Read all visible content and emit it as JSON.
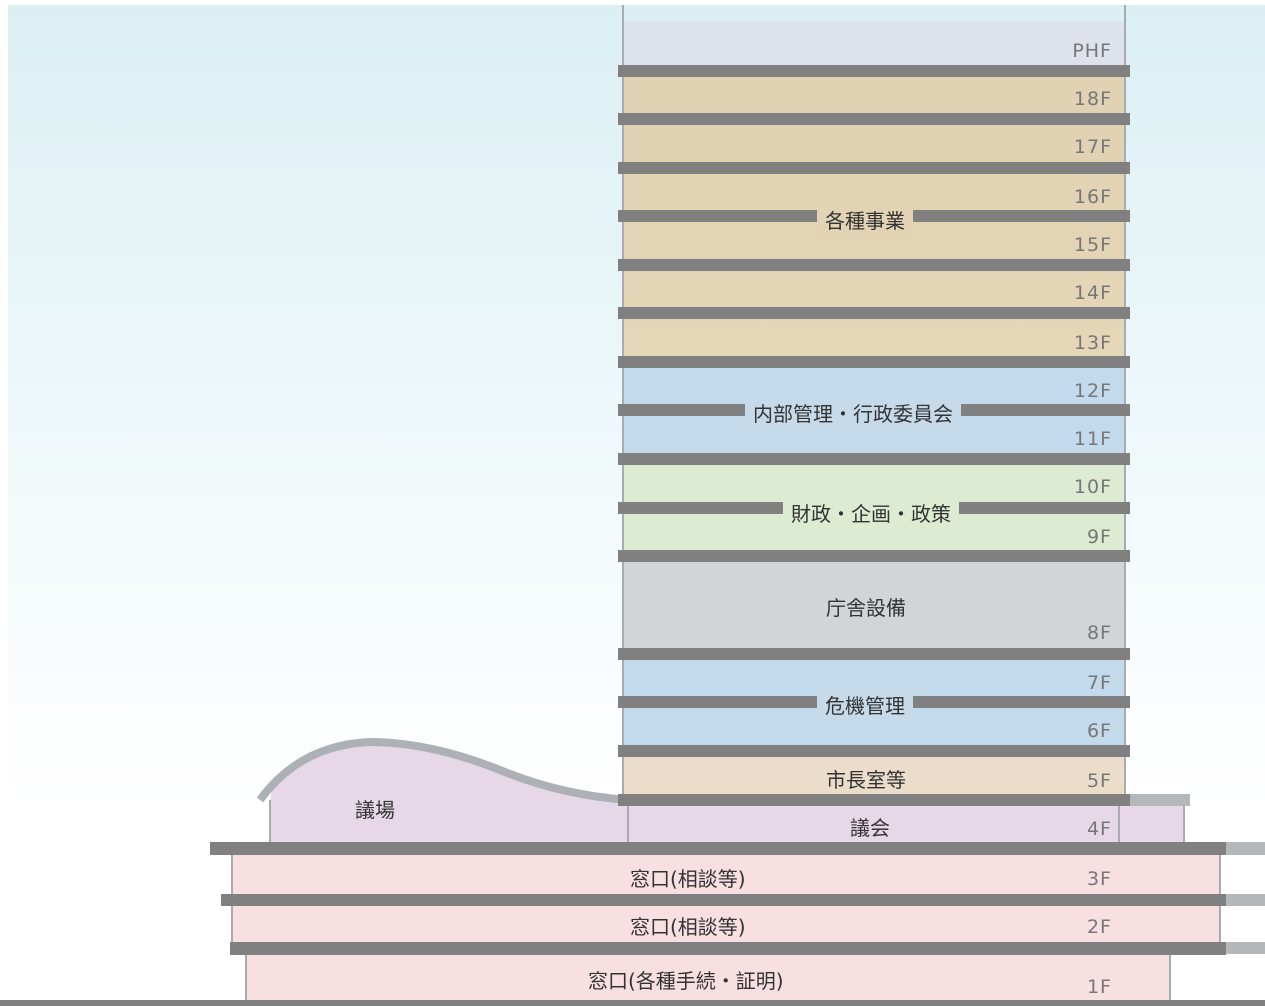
{
  "colors": {
    "penthouse": "#dee2ea",
    "business": "#e2d2b2",
    "internal": "#c3d9ec",
    "finance": "#dcebd2",
    "facilities": "#d3d4d5",
    "crisis": "#c3d9ec",
    "mayor": "#ecdcca",
    "assembly": "#e6d8e6",
    "counter": "#f8e0e2",
    "slab": "#808080"
  },
  "floors": [
    "PHF",
    "18F",
    "17F",
    "16F",
    "15F",
    "14F",
    "13F",
    "12F",
    "11F",
    "10F",
    "9F",
    "8F",
    "7F",
    "6F",
    "5F",
    "4F",
    "3F",
    "2F",
    "1F"
  ],
  "uses": {
    "business": "各種事業",
    "internal": "内部管理・行政委員会",
    "finance": "財政・企画・政策",
    "facilities": "庁舎設備",
    "crisis": "危機管理",
    "mayor": "市長室等",
    "assembly_hall": "議場",
    "assembly": "議会",
    "counter_3f": "窓口(相談等)",
    "counter_2f": "窓口(相談等)",
    "counter_1f": "窓口(各種手続・証明)"
  }
}
